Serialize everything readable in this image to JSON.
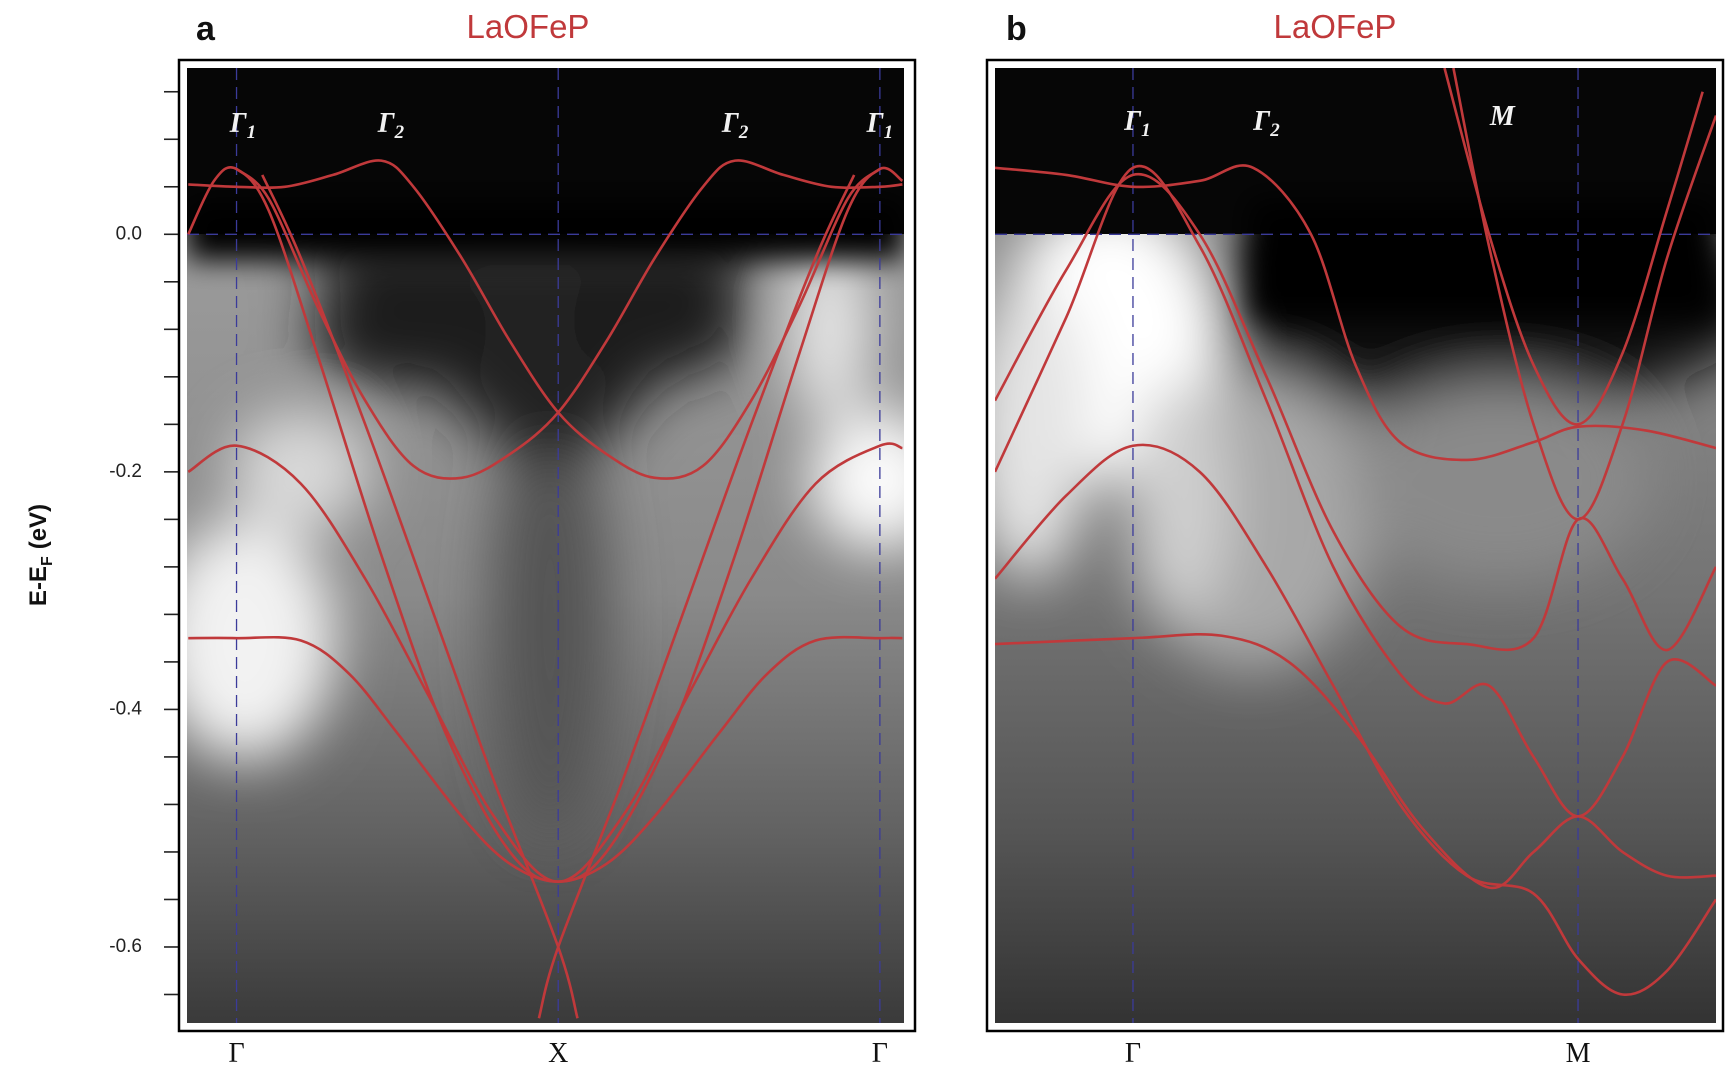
{
  "chart_data": [
    {
      "type": "line",
      "panel": "a",
      "title": "LaOFeP",
      "ylabel": "E-E",
      "ylabel_sub": "F",
      "ylabel_unit": "(eV)",
      "color": "#c0393b",
      "grid": true,
      "grid_color": "#3b3b9a",
      "xlim": [
        -0.154,
        2.075
      ],
      "xticks": [
        {
          "value": 0,
          "label": "Γ"
        },
        {
          "value": 1,
          "label": "X"
        },
        {
          "value": 2,
          "label": "Γ"
        }
      ],
      "ylim": [
        -0.664,
        0.14
      ],
      "yticks": [
        {
          "value": 0,
          "label": "0.0"
        },
        -0.2,
        -0.4,
        -0.6
      ],
      "yminor": [
        0.12,
        0.08,
        0.04,
        -0.04,
        -0.08,
        -0.12,
        -0.16,
        -0.24,
        -0.28,
        -0.32,
        -0.36,
        -0.44,
        -0.48,
        -0.52,
        -0.56,
        -0.64
      ],
      "hlines": [
        0
      ],
      "annotations": [
        {
          "text": "Γ",
          "sub": "1"
        },
        {
          "text": "Γ",
          "sub": "2"
        },
        {
          "text": "Γ",
          "sub": "2"
        },
        {
          "text": "Γ",
          "sub": "1"
        }
      ],
      "series": [
        {
          "x": [
            0,
            0.1,
            0.25,
            0.4,
            0.55,
            0.7,
            0.85,
            1,
            1.15,
            1.3,
            1.45,
            1.55,
            1.7,
            1.85,
            2,
            2.07
          ],
          "values": [
            0.055,
            0.03,
            -0.06,
            -0.14,
            -0.195,
            -0.205,
            -0.185,
            -0.15,
            -0.09,
            -0.02,
            0.04,
            0.062,
            0.05,
            0.04,
            0.04,
            0.042
          ]
        },
        {
          "x": [
            -0.15,
            0,
            0.15,
            0.3,
            0.45,
            0.55,
            0.7,
            0.85,
            1,
            1.15,
            1.3,
            1.45,
            1.6,
            1.75,
            1.9,
            2
          ],
          "values": [
            0.042,
            0.04,
            0.04,
            0.05,
            0.062,
            0.04,
            -0.02,
            -0.09,
            -0.15,
            -0.185,
            -0.205,
            -0.195,
            -0.14,
            -0.06,
            0.03,
            0.055
          ]
        },
        {
          "x": [
            -0.15,
            -0.07,
            0,
            0.1,
            0.25,
            0.45,
            0.65,
            0.85,
            1,
            1.15,
            1.35,
            1.55,
            1.75,
            1.9,
            2,
            2.07
          ],
          "values": [
            0.0,
            0.045,
            0.055,
            0.02,
            -0.1,
            -0.27,
            -0.42,
            -0.52,
            -0.545,
            -0.52,
            -0.42,
            -0.27,
            -0.1,
            0.02,
            0.055,
            0.045
          ]
        },
        {
          "x": [
            0.08,
            0.2,
            0.4,
            0.6,
            0.8,
            1,
            1.06
          ],
          "values": [
            0.05,
            -0.02,
            -0.16,
            -0.31,
            -0.46,
            -0.6,
            -0.66
          ]
        },
        {
          "x": [
            0.94,
            1,
            1.2,
            1.4,
            1.6,
            1.8,
            1.92
          ],
          "values": [
            -0.66,
            -0.6,
            -0.46,
            -0.31,
            -0.16,
            -0.02,
            0.05
          ]
        },
        {
          "x": [
            -0.15,
            0,
            0.2,
            0.4,
            0.6,
            0.8,
            1,
            1.2,
            1.4,
            1.6,
            1.8,
            2,
            2.07
          ],
          "values": [
            -0.2,
            -0.178,
            -0.21,
            -0.29,
            -0.39,
            -0.49,
            -0.545,
            -0.49,
            -0.39,
            -0.29,
            -0.21,
            -0.178,
            -0.18
          ]
        },
        {
          "x": [
            -0.15,
            0,
            0.2,
            0.35,
            0.5,
            0.7,
            0.85,
            1,
            1.15,
            1.3,
            1.5,
            1.65,
            1.8,
            2,
            2.07
          ],
          "values": [
            -0.34,
            -0.34,
            -0.342,
            -0.37,
            -0.42,
            -0.49,
            -0.53,
            -0.545,
            -0.53,
            -0.49,
            -0.42,
            -0.37,
            -0.342,
            -0.34,
            -0.34
          ]
        }
      ]
    },
    {
      "type": "line",
      "panel": "b",
      "title": "LaOFeP",
      "color": "#c0393b",
      "grid": true,
      "grid_color": "#3b3b9a",
      "xlim": [
        -0.31,
        1.31
      ],
      "xticks": [
        {
          "value": 0,
          "label": "Γ"
        },
        {
          "value": 1,
          "label": "M"
        }
      ],
      "ylim": [
        -0.664,
        0.14
      ],
      "hlines": [
        0
      ],
      "annotations": [
        {
          "text": "Γ",
          "sub": "1"
        },
        {
          "text": "Γ",
          "sub": "2"
        },
        {
          "text": "M"
        }
      ],
      "series": [
        {
          "x": [
            -0.31,
            -0.15,
            0,
            0.15,
            0.27,
            0.4,
            0.5,
            0.6,
            0.75,
            0.9,
            1.0,
            1.15,
            1.31
          ],
          "values": [
            0.056,
            0.05,
            0.04,
            0.045,
            0.056,
            0.0,
            -0.11,
            -0.175,
            -0.19,
            -0.175,
            -0.162,
            -0.165,
            -0.18
          ]
        },
        {
          "x": [
            -0.31,
            -0.15,
            0,
            0.15,
            0.3,
            0.45,
            0.6,
            0.7,
            0.8,
            0.9,
            1.0,
            1.1,
            1.2,
            1.31
          ],
          "values": [
            -0.2,
            -0.07,
            0.056,
            -0.01,
            -0.14,
            -0.28,
            -0.37,
            -0.395,
            -0.38,
            -0.44,
            -0.49,
            -0.44,
            -0.36,
            -0.38
          ]
        },
        {
          "x": [
            -0.31,
            -0.15,
            0,
            0.15,
            0.3,
            0.45,
            0.6,
            0.75,
            0.9,
            1.0,
            1.1,
            1.2,
            1.31
          ],
          "values": [
            -0.14,
            -0.03,
            0.05,
            0.0,
            -0.12,
            -0.25,
            -0.33,
            -0.345,
            -0.34,
            -0.24,
            -0.29,
            -0.35,
            -0.28
          ]
        },
        {
          "x": [
            -0.31,
            -0.15,
            0,
            0.15,
            0.3,
            0.45,
            0.6,
            0.75,
            0.9,
            1.0,
            1.1,
            1.2,
            1.31
          ],
          "values": [
            -0.29,
            -0.22,
            -0.178,
            -0.2,
            -0.28,
            -0.38,
            -0.48,
            -0.54,
            -0.555,
            -0.61,
            -0.64,
            -0.62,
            -0.56
          ]
        },
        {
          "x": [
            -0.31,
            0,
            0.2,
            0.35,
            0.5,
            0.65,
            0.8,
            0.9,
            1.0,
            1.1,
            1.2,
            1.31
          ],
          "values": [
            -0.345,
            -0.34,
            -0.338,
            -0.36,
            -0.42,
            -0.5,
            -0.55,
            -0.52,
            -0.49,
            -0.52,
            -0.54,
            -0.54
          ]
        },
        {
          "x": [
            0.7,
            0.8,
            0.9,
            1.0,
            1.1,
            1.2,
            1.28
          ],
          "values": [
            0.14,
            0.0,
            -0.11,
            -0.16,
            -0.1,
            0.02,
            0.12
          ]
        },
        {
          "x": [
            0.72,
            0.8,
            0.9,
            1.0,
            1.1,
            1.2,
            1.31
          ],
          "values": [
            0.14,
            -0.01,
            -0.16,
            -0.24,
            -0.16,
            -0.02,
            0.1
          ]
        }
      ]
    }
  ]
}
